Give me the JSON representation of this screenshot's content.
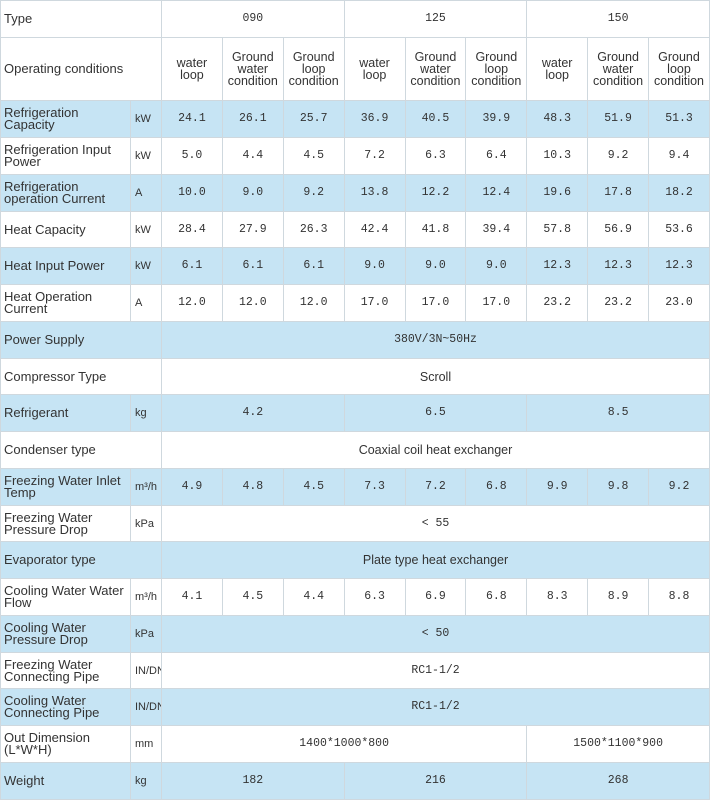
{
  "header": {
    "label": "Type",
    "groups": [
      "090",
      "125",
      "150"
    ]
  },
  "conditions": {
    "label": "Operating conditions",
    "items": [
      "water loop",
      "Ground water condition",
      "Ground loop condition",
      "water loop",
      "Ground water condition",
      "Ground loop condition",
      "water loop",
      "Ground water condition",
      "Ground loop condition"
    ]
  },
  "rows": [
    {
      "label": "Refrigeration Capacity",
      "unit": "kW",
      "cells": [
        "24.1",
        "26.1",
        "25.7",
        "36.9",
        "40.5",
        "39.9",
        "48.3",
        "51.9",
        "51.3"
      ]
    },
    {
      "label": "Refrigeration Input Power",
      "unit": "kW",
      "cells": [
        "5.0",
        "4.4",
        "4.5",
        "7.2",
        "6.3",
        "6.4",
        "10.3",
        "9.2",
        "9.4"
      ]
    },
    {
      "label": "Refrigeration operation Current",
      "unit": "A",
      "cells": [
        "10.0",
        "9.0",
        "9.2",
        "13.8",
        "12.2",
        "12.4",
        "19.6",
        "17.8",
        "18.2"
      ]
    },
    {
      "label": "Heat Capacity",
      "unit": "kW",
      "cells": [
        "28.4",
        "27.9",
        "26.3",
        "42.4",
        "41.8",
        "39.4",
        "57.8",
        "56.9",
        "53.6"
      ]
    },
    {
      "label": "Heat Input Power",
      "unit": "kW",
      "cells": [
        "6.1",
        "6.1",
        "6.1",
        "9.0",
        "9.0",
        "9.0",
        "12.3",
        "12.3",
        "12.3"
      ]
    },
    {
      "label": "Heat Operation Current",
      "unit": "A",
      "cells": [
        "12.0",
        "12.0",
        "12.0",
        "17.0",
        "17.0",
        "17.0",
        "23.2",
        "23.2",
        "23.0"
      ]
    },
    {
      "label": "Power Supply",
      "cells": [
        "380V/3N~50Hz"
      ]
    },
    {
      "label": "Compressor Type",
      "cells": [
        "Scroll"
      ]
    },
    {
      "label": "Refrigerant",
      "unit": "kg",
      "cells": [
        "4.2",
        "6.5",
        "8.5"
      ]
    },
    {
      "label": "Condenser type",
      "cells": [
        "Coaxial coil heat exchanger"
      ]
    },
    {
      "label": "Freezing Water Inlet Temp",
      "unit": "m³/h",
      "cells": [
        "4.9",
        "4.8",
        "4.5",
        "7.3",
        "7.2",
        "6.8",
        "9.9",
        "9.8",
        "9.2"
      ]
    },
    {
      "label": "Freezing Water Pressure Drop",
      "unit": "kPa",
      "cells": [
        "< 55"
      ]
    },
    {
      "label": "Evaporator type",
      "cells": [
        "Plate type heat exchanger"
      ]
    },
    {
      "label": "Cooling Water Water Flow",
      "unit": "m³/h",
      "cells": [
        "4.1",
        "4.5",
        "4.4",
        "6.3",
        "6.9",
        "6.8",
        "8.3",
        "8.9",
        "8.8"
      ]
    },
    {
      "label": "Cooling Water Pressure Drop",
      "unit": "kPa",
      "cells": [
        "< 50"
      ]
    },
    {
      "label": "Freezing Water Connecting Pipe",
      "unit": "IN/DN",
      "cells": [
        "RC1-1/2"
      ]
    },
    {
      "label": "Cooling Water Connecting Pipe",
      "unit": "IN/DN",
      "cells": [
        "RC1-1/2"
      ]
    },
    {
      "label": "Out Dimension (L*W*H)",
      "unit": "mm",
      "cells": [
        "1400*1000*800",
        "1500*1100*900"
      ]
    },
    {
      "label": "Weight",
      "unit": "kg",
      "cells": [
        "182",
        "216",
        "268"
      ]
    }
  ]
}
